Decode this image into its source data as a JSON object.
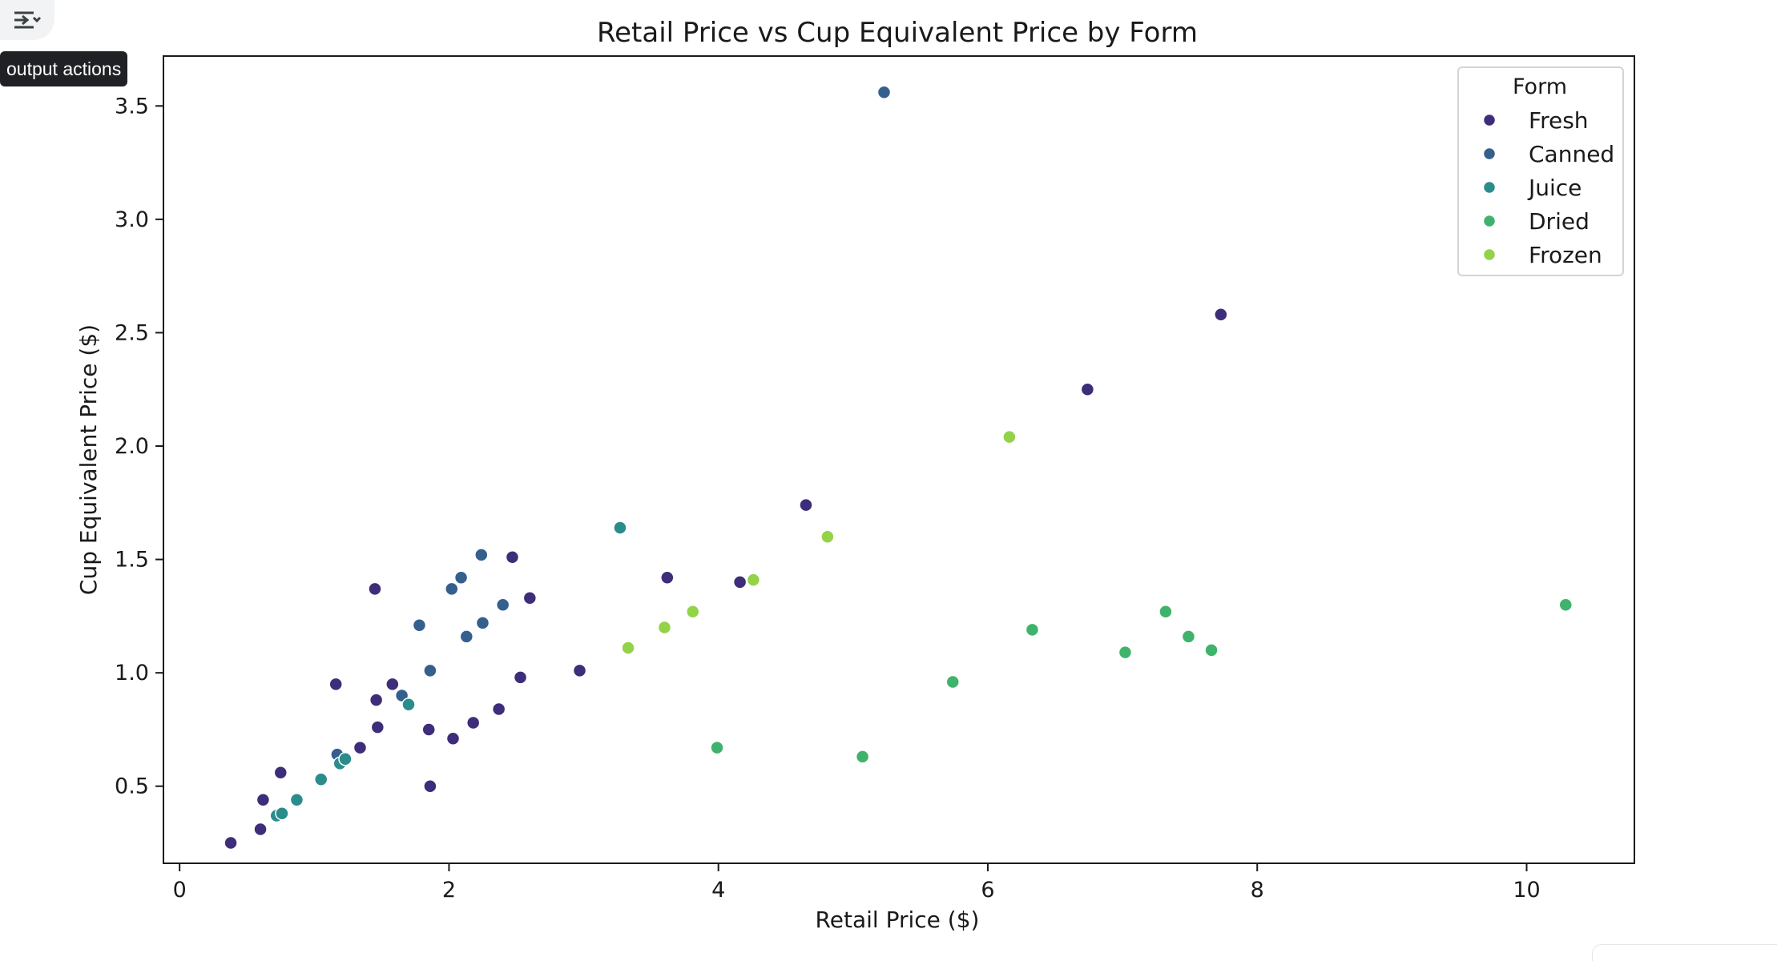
{
  "output_actions": {
    "icon": "output-actions-icon",
    "tooltip": "output actions"
  },
  "chart_data": {
    "type": "scatter",
    "title": "Retail Price vs Cup Equivalent Price by Form",
    "xlabel": "Retail Price ($)",
    "ylabel": "Cup Equivalent Price ($)",
    "xlim": [
      -0.12,
      10.8
    ],
    "ylim": [
      0.16,
      3.72
    ],
    "xticks": [
      0,
      2,
      4,
      6,
      8,
      10
    ],
    "yticks": [
      0.5,
      1.0,
      1.5,
      2.0,
      2.5,
      3.0,
      3.5
    ],
    "grid": false,
    "legend": {
      "title": "Form",
      "placement": "top-right"
    },
    "series": [
      {
        "name": "Fresh",
        "color": "#3d2d7a",
        "points": [
          [
            0.38,
            0.25
          ],
          [
            0.6,
            0.31
          ],
          [
            0.62,
            0.44
          ],
          [
            0.75,
            0.56
          ],
          [
            1.16,
            0.95
          ],
          [
            1.34,
            0.67
          ],
          [
            1.45,
            1.37
          ],
          [
            1.46,
            0.88
          ],
          [
            1.47,
            0.76
          ],
          [
            1.58,
            0.95
          ],
          [
            1.85,
            0.75
          ],
          [
            1.86,
            0.5
          ],
          [
            2.03,
            0.71
          ],
          [
            2.18,
            0.78
          ],
          [
            2.37,
            0.84
          ],
          [
            2.47,
            1.51
          ],
          [
            2.53,
            0.98
          ],
          [
            2.6,
            1.33
          ],
          [
            2.97,
            1.01
          ],
          [
            3.62,
            1.42
          ],
          [
            4.16,
            1.4
          ],
          [
            4.65,
            1.74
          ],
          [
            6.74,
            2.25
          ],
          [
            7.73,
            2.58
          ]
        ]
      },
      {
        "name": "Canned",
        "color": "#355f8d",
        "points": [
          [
            1.17,
            0.64
          ],
          [
            1.65,
            0.9
          ],
          [
            1.78,
            1.21
          ],
          [
            1.86,
            1.01
          ],
          [
            2.02,
            1.37
          ],
          [
            2.09,
            1.42
          ],
          [
            2.13,
            1.16
          ],
          [
            2.24,
            1.52
          ],
          [
            2.25,
            1.22
          ],
          [
            2.4,
            1.3
          ],
          [
            5.23,
            3.56
          ]
        ]
      },
      {
        "name": "Juice",
        "color": "#2b8c8c",
        "points": [
          [
            0.72,
            0.37
          ],
          [
            0.76,
            0.38
          ],
          [
            0.87,
            0.44
          ],
          [
            1.05,
            0.53
          ],
          [
            1.19,
            0.6
          ],
          [
            1.23,
            0.62
          ],
          [
            1.7,
            0.86
          ],
          [
            3.27,
            1.64
          ]
        ]
      },
      {
        "name": "Dried",
        "color": "#3fb36c",
        "points": [
          [
            3.99,
            0.67
          ],
          [
            5.07,
            0.63
          ],
          [
            5.74,
            0.96
          ],
          [
            6.33,
            1.19
          ],
          [
            7.02,
            1.09
          ],
          [
            7.32,
            1.27
          ],
          [
            7.49,
            1.16
          ],
          [
            7.66,
            1.1
          ],
          [
            10.29,
            1.3
          ]
        ]
      },
      {
        "name": "Frozen",
        "color": "#94d24a",
        "points": [
          [
            3.33,
            1.11
          ],
          [
            3.6,
            1.2
          ],
          [
            3.81,
            1.27
          ],
          [
            4.26,
            1.41
          ],
          [
            4.81,
            1.6
          ],
          [
            6.16,
            2.04
          ]
        ]
      }
    ]
  }
}
